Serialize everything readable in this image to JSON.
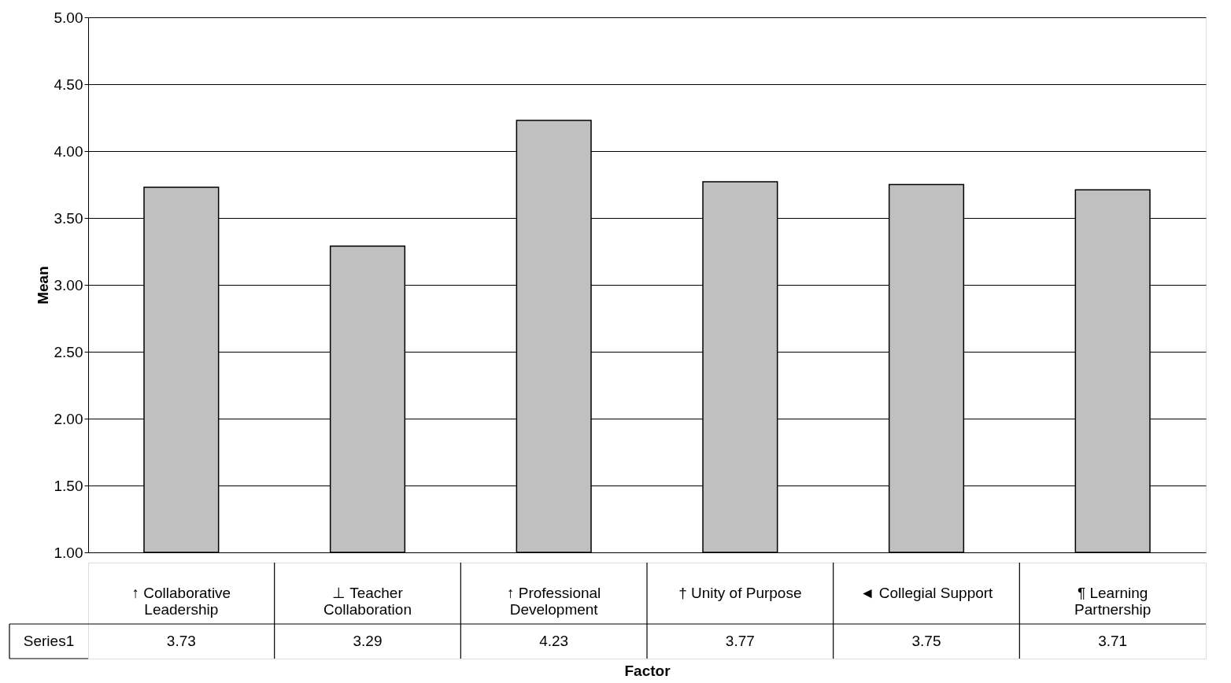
{
  "chart_data": {
    "type": "bar",
    "xlabel": "Factor",
    "ylabel": "Mean",
    "categories": [
      "↑ Collaborative Leadership",
      "⊥ Teacher Collaboration",
      "↑ Professional Development",
      "† Unity of Purpose",
      "◄ Collegial Support",
      "¶ Learning Partnership"
    ],
    "series": [
      {
        "name": "Series1",
        "color": "#c0c0c0",
        "values": [
          3.73,
          3.29,
          4.23,
          3.77,
          3.75,
          3.71
        ]
      }
    ],
    "ylim": [
      1,
      5
    ],
    "yticks": [
      {
        "value": 1,
        "label": "1.00"
      },
      {
        "value": 1.5,
        "label": "1.50"
      },
      {
        "value": 2,
        "label": "2.00"
      },
      {
        "value": 2.5,
        "label": "2.50"
      },
      {
        "value": 3,
        "label": "3.00"
      },
      {
        "value": 3.5,
        "label": "3.50"
      },
      {
        "value": 4,
        "label": "4.00"
      },
      {
        "value": 4.5,
        "label": "4.50"
      },
      {
        "value": 5,
        "label": "5.00"
      }
    ],
    "grid": "y",
    "data_labels": true,
    "legend": "bottom left"
  }
}
